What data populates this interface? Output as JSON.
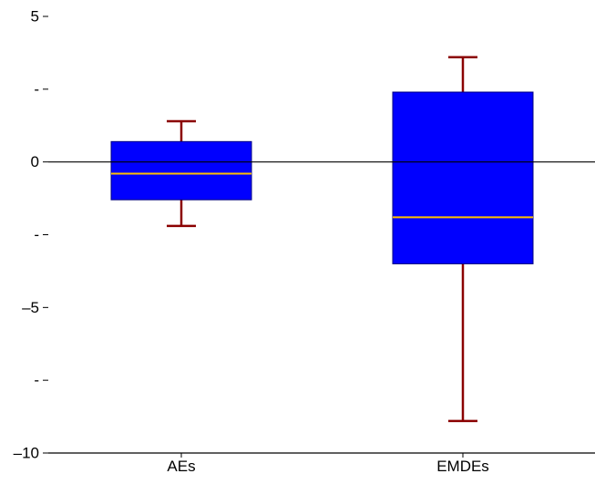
{
  "chart_data": {
    "type": "box",
    "title": "",
    "xlabel": "",
    "ylabel": "",
    "ylim": [
      -10,
      5
    ],
    "yticks": [
      {
        "value": 5,
        "label": "5"
      },
      {
        "value": 2.5,
        "label": "-"
      },
      {
        "value": 0,
        "label": "0"
      },
      {
        "value": -2.5,
        "label": "-"
      },
      {
        "value": -5,
        "label": "–5"
      },
      {
        "value": -7.5,
        "label": "-"
      },
      {
        "value": -10,
        "label": "–10"
      }
    ],
    "zero_line": true,
    "grid": false,
    "categories": [
      "AEs",
      "EMDEs"
    ],
    "boxes": [
      {
        "category": "AEs",
        "whisker_low": -2.2,
        "q1": -1.3,
        "median": -0.4,
        "q3": 0.7,
        "whisker_high": 1.4
      },
      {
        "category": "EMDEs",
        "whisker_low": -8.9,
        "q1": -3.5,
        "median": -1.9,
        "q3": 2.4,
        "whisker_high": 3.6
      }
    ],
    "colors": {
      "box_fill": "#0000ff",
      "median_line": "#ffc000",
      "whisker": "#8b0000",
      "axis": "#000000"
    }
  }
}
